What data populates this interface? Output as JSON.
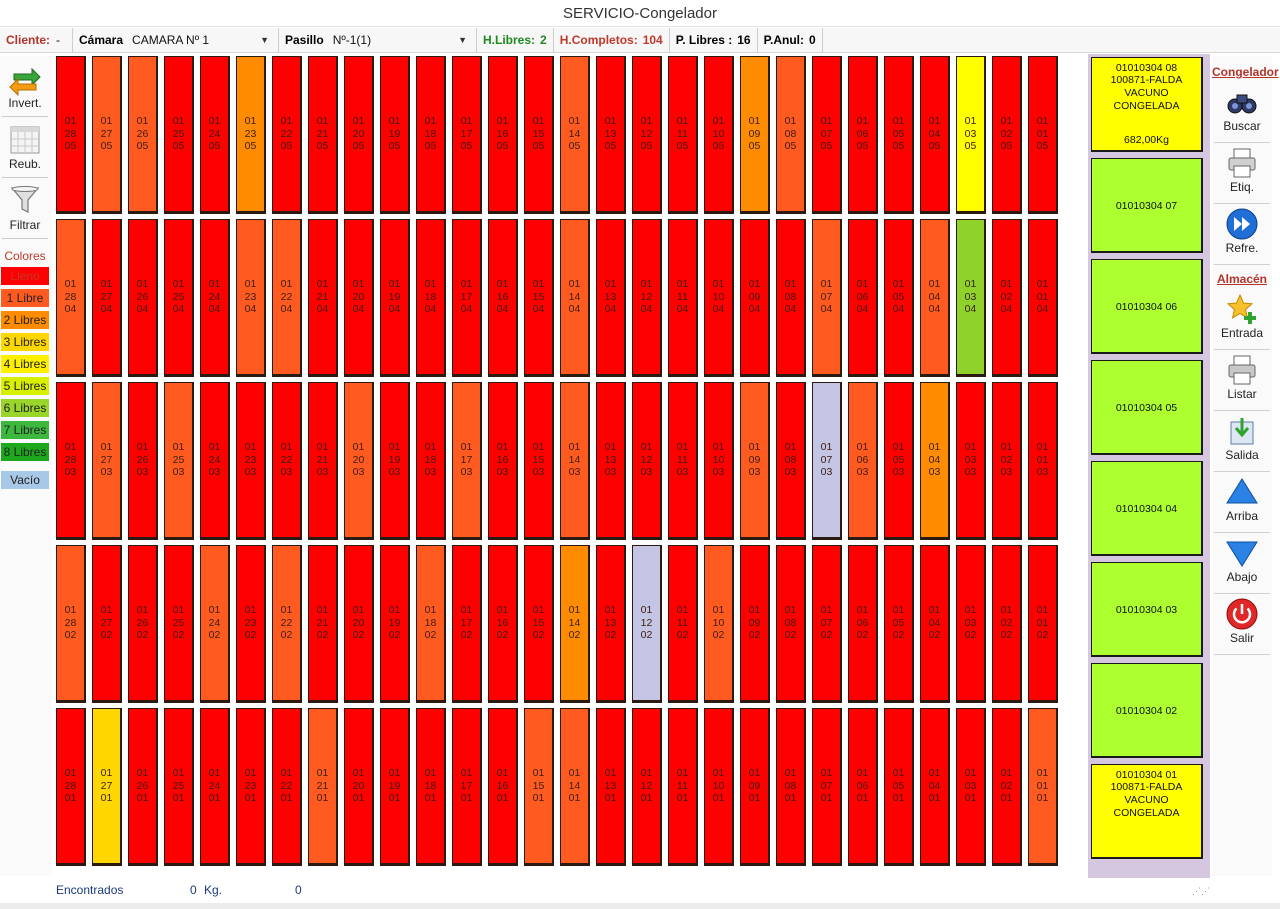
{
  "window_title": "SERVICIO-Congelador",
  "infobar": {
    "cliente_label": "Cliente:",
    "cliente_value": "-",
    "camara_label": "Cámara",
    "camara_value": "CAMARA  Nº 1",
    "pasillo_label": "Pasillo",
    "pasillo_value": "Nº-1(1)",
    "hlibres_label": "H.Libres:",
    "hlibres_value": "2",
    "hcompletos_label": "H.Completos:",
    "hcompletos_value": "104",
    "plibres_label": "P. Libres :",
    "plibres_value": "16",
    "panul_label": "P.Anul:",
    "panul_value": "0",
    "hlibres_color": "#1e8a1e",
    "hcompletos_color": "#c0392b"
  },
  "left_toolbar": {
    "invert_label": "Invert.",
    "reub_label": "Reub.",
    "filtrar_label": "Filtrar",
    "colores_label": "Colores"
  },
  "legend": [
    {
      "label": "Lleno",
      "color": "#ff0000",
      "text_color": "#c0392b"
    },
    {
      "label": "1 Libre",
      "color": "#ff5a1f",
      "text_color": "#222222"
    },
    {
      "label": "2 Libres",
      "color": "#ff8c00",
      "text_color": "#222222"
    },
    {
      "label": "3 Libres",
      "color": "#ffd700",
      "text_color": "#222222"
    },
    {
      "label": "4 Libres",
      "color": "#ffef00",
      "text_color": "#222222"
    },
    {
      "label": "5 Libres",
      "color": "#d8f000",
      "text_color": "#222222"
    },
    {
      "label": "6 Libres",
      "color": "#9ad62a",
      "text_color": "#222222"
    },
    {
      "label": "7 Libres",
      "color": "#3cb83c",
      "text_color": "#222222"
    },
    {
      "label": "8 Libres",
      "color": "#1ea81e",
      "text_color": "#222222"
    },
    {
      "label": "Vacío",
      "color": "#a8c8e8",
      "text_color": "#222222"
    }
  ],
  "grid": {
    "columns": [
      "28",
      "27",
      "26",
      "25",
      "24",
      "23",
      "22",
      "21",
      "20",
      "19",
      "18",
      "17",
      "16",
      "15",
      "14",
      "13",
      "12",
      "11",
      "10",
      "09",
      "08",
      "07",
      "06",
      "05",
      "04",
      "03",
      "02",
      "01"
    ],
    "rows": [
      {
        "level": "05",
        "colors": [
          "#ff0000",
          "#ff5a1f",
          "#ff5a1f",
          "#ff0000",
          "#ff0000",
          "#ff8c00",
          "#ff0000",
          "#ff0000",
          "#ff0000",
          "#ff0000",
          "#ff0000",
          "#ff0000",
          "#ff0000",
          "#ff0000",
          "#ff5a1f",
          "#ff0000",
          "#ff0000",
          "#ff0000",
          "#ff0000",
          "#ff8c00",
          "#ff5a1f",
          "#ff0000",
          "#ff0000",
          "#ff0000",
          "#ff0000",
          "#ffff00",
          "#ff0000",
          "#ff0000"
        ]
      },
      {
        "level": "04",
        "colors": [
          "#ff5a1f",
          "#ff0000",
          "#ff0000",
          "#ff0000",
          "#ff0000",
          "#ff5a1f",
          "#ff5a1f",
          "#ff0000",
          "#ff0000",
          "#ff0000",
          "#ff0000",
          "#ff0000",
          "#ff0000",
          "#ff0000",
          "#ff5a1f",
          "#ff0000",
          "#ff0000",
          "#ff0000",
          "#ff0000",
          "#ff0000",
          "#ff0000",
          "#ff5a1f",
          "#ff0000",
          "#ff0000",
          "#ff5a1f",
          "#8fd22a",
          "#ff0000",
          "#ff0000"
        ]
      },
      {
        "level": "03",
        "colors": [
          "#ff0000",
          "#ff5a1f",
          "#ff0000",
          "#ff5a1f",
          "#ff0000",
          "#ff0000",
          "#ff0000",
          "#ff0000",
          "#ff5a1f",
          "#ff0000",
          "#ff0000",
          "#ff5a1f",
          "#ff0000",
          "#ff0000",
          "#ff5a1f",
          "#ff0000",
          "#ff0000",
          "#ff0000",
          "#ff0000",
          "#ff5a1f",
          "#ff0000",
          "#c4c4e4",
          "#ff5a1f",
          "#ff0000",
          "#ff8c00",
          "#ff0000",
          "#ff0000",
          "#ff0000"
        ]
      },
      {
        "level": "02",
        "colors": [
          "#ff5a1f",
          "#ff0000",
          "#ff0000",
          "#ff0000",
          "#ff5a1f",
          "#ff0000",
          "#ff5a1f",
          "#ff0000",
          "#ff0000",
          "#ff0000",
          "#ff5a1f",
          "#ff0000",
          "#ff0000",
          "#ff0000",
          "#ff8c00",
          "#ff0000",
          "#c4c4e4",
          "#ff0000",
          "#ff5a1f",
          "#ff0000",
          "#ff0000",
          "#ff0000",
          "#ff0000",
          "#ff0000",
          "#ff0000",
          "#ff0000",
          "#ff0000",
          "#ff0000"
        ]
      },
      {
        "level": "01",
        "colors": [
          "#ff0000",
          "#ffd700",
          "#ff0000",
          "#ff0000",
          "#ff0000",
          "#ff0000",
          "#ff0000",
          "#ff5a1f",
          "#ff0000",
          "#ff0000",
          "#ff0000",
          "#ff0000",
          "#ff0000",
          "#ff5a1f",
          "#ff5a1f",
          "#ff0000",
          "#ff0000",
          "#ff0000",
          "#ff0000",
          "#ff0000",
          "#ff0000",
          "#ff0000",
          "#ff0000",
          "#ff0000",
          "#ff0000",
          "#ff0000",
          "#ff0000",
          "#ff5a1f"
        ]
      }
    ],
    "prefix": "01"
  },
  "right_panel": {
    "boxes": [
      {
        "code": "01010304 08",
        "desc": "100871-FALDA VACUNO CONGELADA",
        "weight": "682,00Kg",
        "color": "yellow"
      },
      {
        "code": "01010304 07",
        "desc": "",
        "weight": "",
        "color": "green"
      },
      {
        "code": "01010304 06",
        "desc": "",
        "weight": "",
        "color": "green"
      },
      {
        "code": "01010304 05",
        "desc": "",
        "weight": "",
        "color": "green"
      },
      {
        "code": "01010304 04",
        "desc": "",
        "weight": "",
        "color": "green"
      },
      {
        "code": "01010304 03",
        "desc": "",
        "weight": "",
        "color": "green"
      },
      {
        "code": "01010304 02",
        "desc": "",
        "weight": "",
        "color": "green"
      },
      {
        "code": "01010304 01",
        "desc": "100871-FALDA VACUNO CONGELADA",
        "weight": "",
        "color": "yellow"
      }
    ]
  },
  "right_toolbar": {
    "congelador_label": "Congelador",
    "buscar_label": "Buscar",
    "etiq_label": "Etiq.",
    "refre_label": "Refre.",
    "almacen_label": "Almacén",
    "entrada_label": "Entrada",
    "listar_label": "Listar",
    "salida_label": "Salida",
    "arriba_label": "Arriba",
    "abajo_label": "Abajo",
    "salir_label": "Salir"
  },
  "status": {
    "encontrados_label": "Encontrados",
    "encontrados_value": "0",
    "kg_label": "Kg.",
    "kg_value": "0"
  }
}
